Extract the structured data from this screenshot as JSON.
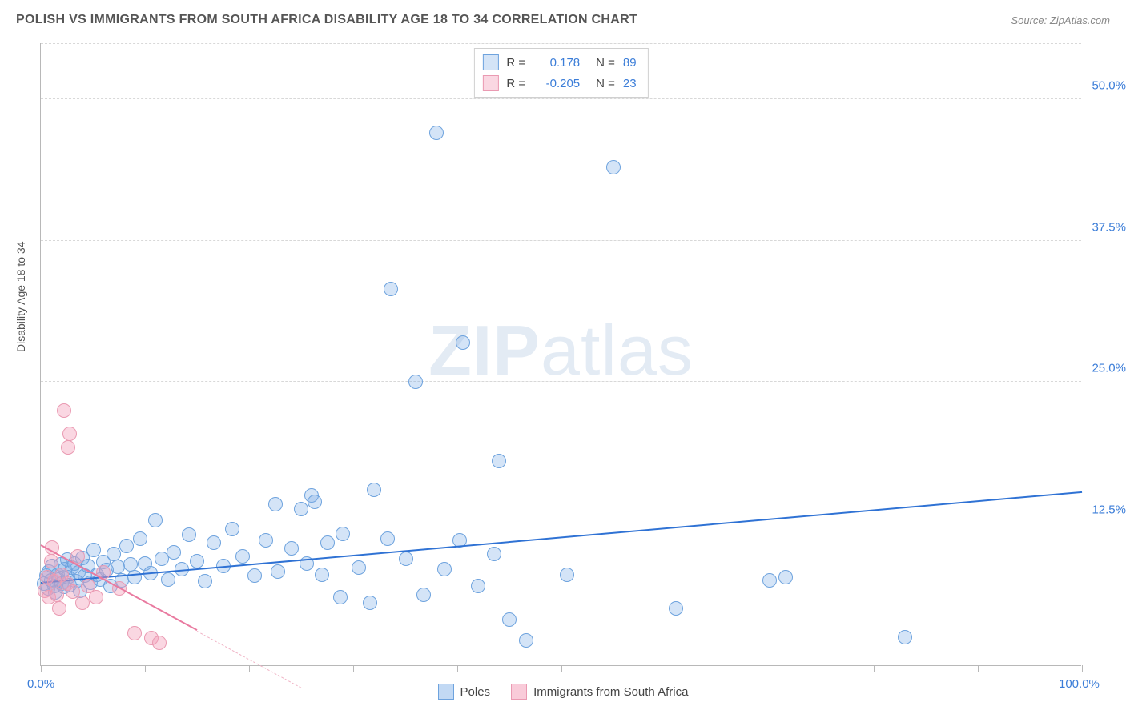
{
  "header": {
    "title": "POLISH VS IMMIGRANTS FROM SOUTH AFRICA DISABILITY AGE 18 TO 34 CORRELATION CHART",
    "source_prefix": "Source: ",
    "source_name": "ZipAtlas.com"
  },
  "watermark": {
    "part1": "ZIP",
    "part2": "atlas"
  },
  "chart": {
    "type": "scatter",
    "y_axis_title": "Disability Age 18 to 34",
    "xlim": [
      0,
      100
    ],
    "ylim": [
      0,
      55
    ],
    "y_ticks": [
      {
        "value": 12.5,
        "label": "12.5%"
      },
      {
        "value": 25.0,
        "label": "25.0%"
      },
      {
        "value": 37.5,
        "label": "37.5%"
      },
      {
        "value": 50.0,
        "label": "50.0%"
      }
    ],
    "y_tick_color": "#3b7dd8",
    "x_tick_positions": [
      0,
      10,
      20,
      30,
      40,
      50,
      60,
      70,
      80,
      90,
      100
    ],
    "x_label_left": {
      "text": "0.0%",
      "color": "#3b7dd8"
    },
    "x_label_right": {
      "text": "100.0%",
      "color": "#3b7dd8"
    },
    "grid_color": "#d8d8d8",
    "background_color": "#ffffff",
    "point_radius": 9,
    "series": [
      {
        "key": "poles",
        "label": "Poles",
        "R_label": "R =",
        "R_value": "0.178",
        "N_label": "N =",
        "N_value": "89",
        "stat_color": "#3b7dd8",
        "fill": "rgba(120,170,230,0.32)",
        "stroke": "#6ea3de",
        "trend": {
          "x1": 0,
          "y1": 7.2,
          "x2": 100,
          "y2": 15.2,
          "color": "#2f72d4",
          "width": 2.2
        },
        "points": [
          [
            0.3,
            7.2
          ],
          [
            0.5,
            7.9
          ],
          [
            0.7,
            6.8
          ],
          [
            0.8,
            8.3
          ],
          [
            1.0,
            7.5
          ],
          [
            1.1,
            8.8
          ],
          [
            1.3,
            7.0
          ],
          [
            1.4,
            6.4
          ],
          [
            1.6,
            8.0
          ],
          [
            1.7,
            7.6
          ],
          [
            1.9,
            8.9
          ],
          [
            2.0,
            7.2
          ],
          [
            2.2,
            6.9
          ],
          [
            2.3,
            8.5
          ],
          [
            2.5,
            9.3
          ],
          [
            2.6,
            7.8
          ],
          [
            2.8,
            7.1
          ],
          [
            3.0,
            8.6
          ],
          [
            3.2,
            9.0
          ],
          [
            3.4,
            7.4
          ],
          [
            3.6,
            8.2
          ],
          [
            3.8,
            6.6
          ],
          [
            4.0,
            9.5
          ],
          [
            4.2,
            7.9
          ],
          [
            4.5,
            8.8
          ],
          [
            4.8,
            7.3
          ],
          [
            5.1,
            10.2
          ],
          [
            5.4,
            8.0
          ],
          [
            5.7,
            7.6
          ],
          [
            6.0,
            9.1
          ],
          [
            6.3,
            8.4
          ],
          [
            6.7,
            7.0
          ],
          [
            7.0,
            9.8
          ],
          [
            7.4,
            8.7
          ],
          [
            7.8,
            7.5
          ],
          [
            8.2,
            10.5
          ],
          [
            8.6,
            8.9
          ],
          [
            9.0,
            7.8
          ],
          [
            9.5,
            11.2
          ],
          [
            10.0,
            9.0
          ],
          [
            10.5,
            8.1
          ],
          [
            11.0,
            12.8
          ],
          [
            11.6,
            9.4
          ],
          [
            12.2,
            7.6
          ],
          [
            12.8,
            10.0
          ],
          [
            13.5,
            8.5
          ],
          [
            14.2,
            11.5
          ],
          [
            15.0,
            9.2
          ],
          [
            15.8,
            7.4
          ],
          [
            16.6,
            10.8
          ],
          [
            17.5,
            8.8
          ],
          [
            18.4,
            12.0
          ],
          [
            19.4,
            9.6
          ],
          [
            20.5,
            7.9
          ],
          [
            21.6,
            11.0
          ],
          [
            22.5,
            14.2
          ],
          [
            22.8,
            8.3
          ],
          [
            24.1,
            10.3
          ],
          [
            25.0,
            13.8
          ],
          [
            25.5,
            9.0
          ],
          [
            26.0,
            15.0
          ],
          [
            26.3,
            14.4
          ],
          [
            27.0,
            8.0
          ],
          [
            27.5,
            10.8
          ],
          [
            28.8,
            6.0
          ],
          [
            29.0,
            11.6
          ],
          [
            30.5,
            8.6
          ],
          [
            31.6,
            5.5
          ],
          [
            32.0,
            15.5
          ],
          [
            33.3,
            11.2
          ],
          [
            33.6,
            33.2
          ],
          [
            35.1,
            9.4
          ],
          [
            36.0,
            25.0
          ],
          [
            36.8,
            6.2
          ],
          [
            38.0,
            47.0
          ],
          [
            38.8,
            8.5
          ],
          [
            40.2,
            11.0
          ],
          [
            40.5,
            28.5
          ],
          [
            42.0,
            7.0
          ],
          [
            43.5,
            9.8
          ],
          [
            44.0,
            18.0
          ],
          [
            45.0,
            4.0
          ],
          [
            46.6,
            2.2
          ],
          [
            50.5,
            8.0
          ],
          [
            55.0,
            44.0
          ],
          [
            61.0,
            5.0
          ],
          [
            70.0,
            7.5
          ],
          [
            83.0,
            2.5
          ],
          [
            71.5,
            7.8
          ]
        ]
      },
      {
        "key": "sa",
        "label": "Immigrants from South Africa",
        "R_label": "R =",
        "R_value": "-0.205",
        "N_label": "N =",
        "N_value": "23",
        "stat_color": "#3b7dd8",
        "fill": "rgba(244,160,185,0.42)",
        "stroke": "#ea9ab2",
        "trend_solid": {
          "x1": 0,
          "y1": 10.5,
          "x2": 15,
          "y2": 3.0,
          "color": "#e97aa0",
          "width": 2
        },
        "trend_dash": {
          "x1": 15,
          "y1": 3.0,
          "x2": 25,
          "y2": -2.0,
          "color": "#f0b4c6"
        },
        "points": [
          [
            0.4,
            6.6
          ],
          [
            0.6,
            7.8
          ],
          [
            0.8,
            6.0
          ],
          [
            1.0,
            9.2
          ],
          [
            1.1,
            10.4
          ],
          [
            1.3,
            7.4
          ],
          [
            1.5,
            6.2
          ],
          [
            1.8,
            5.0
          ],
          [
            2.0,
            8.0
          ],
          [
            2.2,
            22.5
          ],
          [
            2.5,
            7.2
          ],
          [
            2.8,
            20.4
          ],
          [
            2.6,
            19.2
          ],
          [
            3.1,
            6.5
          ],
          [
            3.5,
            9.6
          ],
          [
            4.0,
            5.5
          ],
          [
            4.5,
            7.0
          ],
          [
            5.3,
            6.0
          ],
          [
            6.0,
            8.2
          ],
          [
            7.5,
            6.8
          ],
          [
            9.0,
            2.8
          ],
          [
            10.6,
            2.4
          ],
          [
            11.4,
            2.0
          ]
        ]
      }
    ],
    "legend_bottom": [
      {
        "label": "Poles",
        "fill": "rgba(120,170,230,0.45)",
        "stroke": "#6ea3de"
      },
      {
        "label": "Immigrants from South Africa",
        "fill": "rgba(244,160,185,0.55)",
        "stroke": "#ea9ab2"
      }
    ]
  }
}
